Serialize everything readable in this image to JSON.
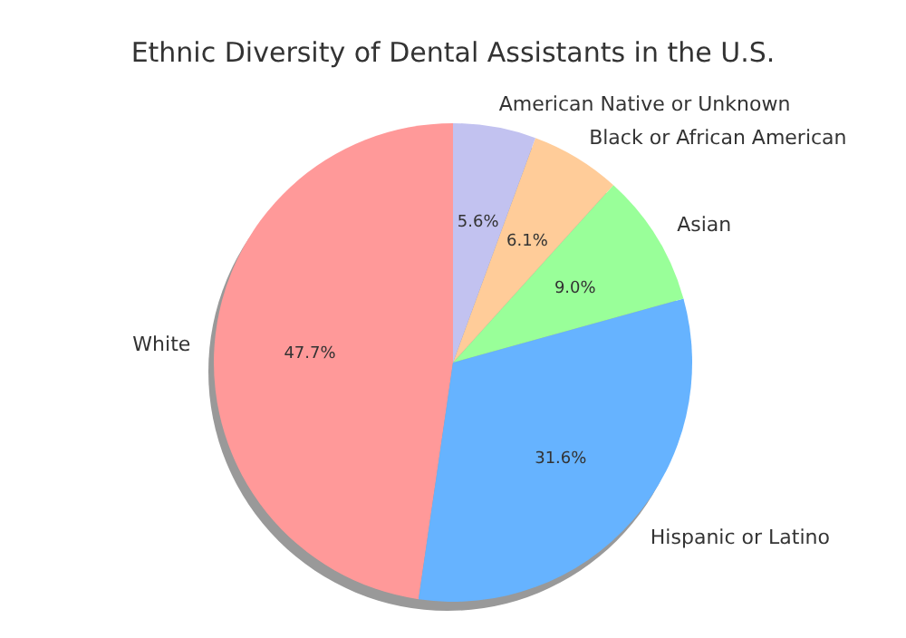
{
  "chart_data": {
    "type": "pie",
    "title": "Ethnic Diversity of Dental Assistants in the U.S.",
    "categories": [
      "White",
      "Hispanic or Latino",
      "Asian",
      "Black or African American",
      "American Native or Unknown"
    ],
    "values": [
      47.7,
      31.6,
      9.0,
      6.1,
      5.6
    ],
    "colors": [
      "#ff9999",
      "#66b3ff",
      "#99ff99",
      "#ffcc99",
      "#c2c2f0"
    ],
    "value_labels": [
      "47.7%",
      "31.6%",
      "9.0%",
      "6.1%",
      "5.6%"
    ]
  }
}
